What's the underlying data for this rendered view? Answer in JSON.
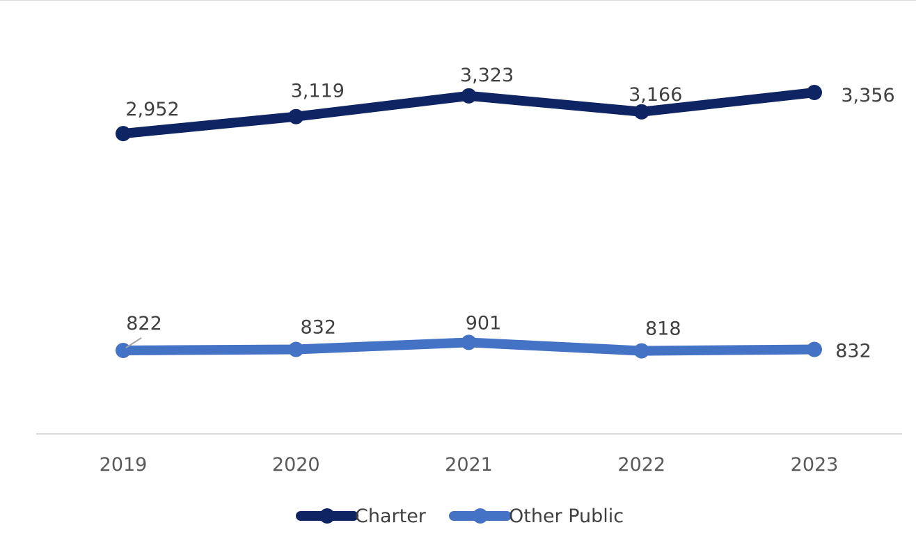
{
  "chart_data": {
    "type": "line",
    "categories": [
      "2019",
      "2020",
      "2021",
      "2022",
      "2023"
    ],
    "series": [
      {
        "name": "Charter",
        "values": [
          2952,
          3119,
          3323,
          3166,
          3356
        ],
        "labels": [
          "2,952",
          "3,119",
          "3,323",
          "3,166",
          "3,356"
        ],
        "color": "#0e2463"
      },
      {
        "name": "Other Public",
        "values": [
          822,
          832,
          901,
          818,
          832
        ],
        "labels": [
          "822",
          "832",
          "901",
          "818",
          "832"
        ],
        "color": "#4472c4"
      }
    ],
    "title": "",
    "xlabel": "",
    "ylabel": "",
    "y_axis_visible": false,
    "grid": false,
    "legend_position": "bottom"
  }
}
